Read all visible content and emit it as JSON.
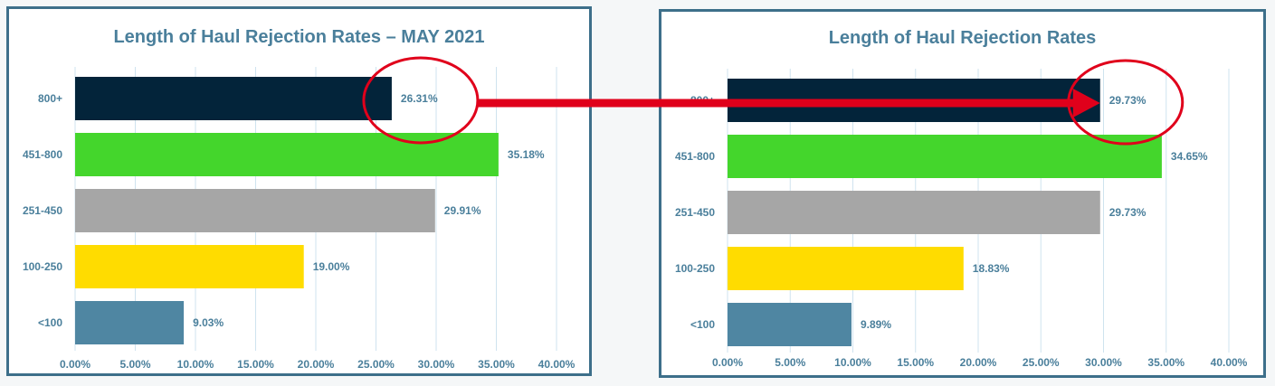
{
  "chart_data": [
    {
      "type": "bar",
      "orientation": "horizontal",
      "title": "Length of Haul Rejection Rates – MAY 2021",
      "xlabel": "",
      "ylabel": "",
      "categories": [
        "800+",
        "451-800",
        "251-450",
        "100-250",
        "<100"
      ],
      "values": [
        26.31,
        35.18,
        29.91,
        19.0,
        9.03
      ],
      "data_labels": [
        "26.31%",
        "35.18%",
        "29.91%",
        "19.00%",
        "9.03%"
      ],
      "bar_colors": [
        "#03243a",
        "#44d62c",
        "#a6a6a6",
        "#ffdc00",
        "#4f86a2"
      ],
      "xlim": [
        0,
        40
      ],
      "ticks": [
        "0.00%",
        "5.00%",
        "10.00%",
        "15.00%",
        "20.00%",
        "25.00%",
        "30.00%",
        "35.00%",
        "40.00%"
      ],
      "grid": "vertical",
      "legend": "none"
    },
    {
      "type": "bar",
      "orientation": "horizontal",
      "title": "Length of Haul Rejection Rates",
      "xlabel": "",
      "ylabel": "",
      "categories": [
        "800+",
        "451-800",
        "251-450",
        "100-250",
        "<100"
      ],
      "values": [
        29.73,
        34.65,
        29.73,
        18.83,
        9.89
      ],
      "data_labels": [
        "29.73%",
        "34.65%",
        "29.73%",
        "18.83%",
        "9.89%"
      ],
      "bar_colors": [
        "#03243a",
        "#44d62c",
        "#a6a6a6",
        "#ffdc00",
        "#4f86a2"
      ],
      "xlim": [
        0,
        40
      ],
      "ticks": [
        "0.00%",
        "5.00%",
        "10.00%",
        "15.00%",
        "20.00%",
        "25.00%",
        "30.00%",
        "35.00%",
        "40.00%"
      ],
      "grid": "vertical",
      "legend": "none"
    }
  ],
  "annotations": {
    "highlight_color": "#e0001b",
    "arrow_from": "800+ bar value (left chart)",
    "arrow_to": "800+ bar value (right chart)"
  },
  "colors": {
    "panel_border": "#3d6f8a",
    "text": "#4a7f9b",
    "gridline": "#cfe3ef"
  }
}
